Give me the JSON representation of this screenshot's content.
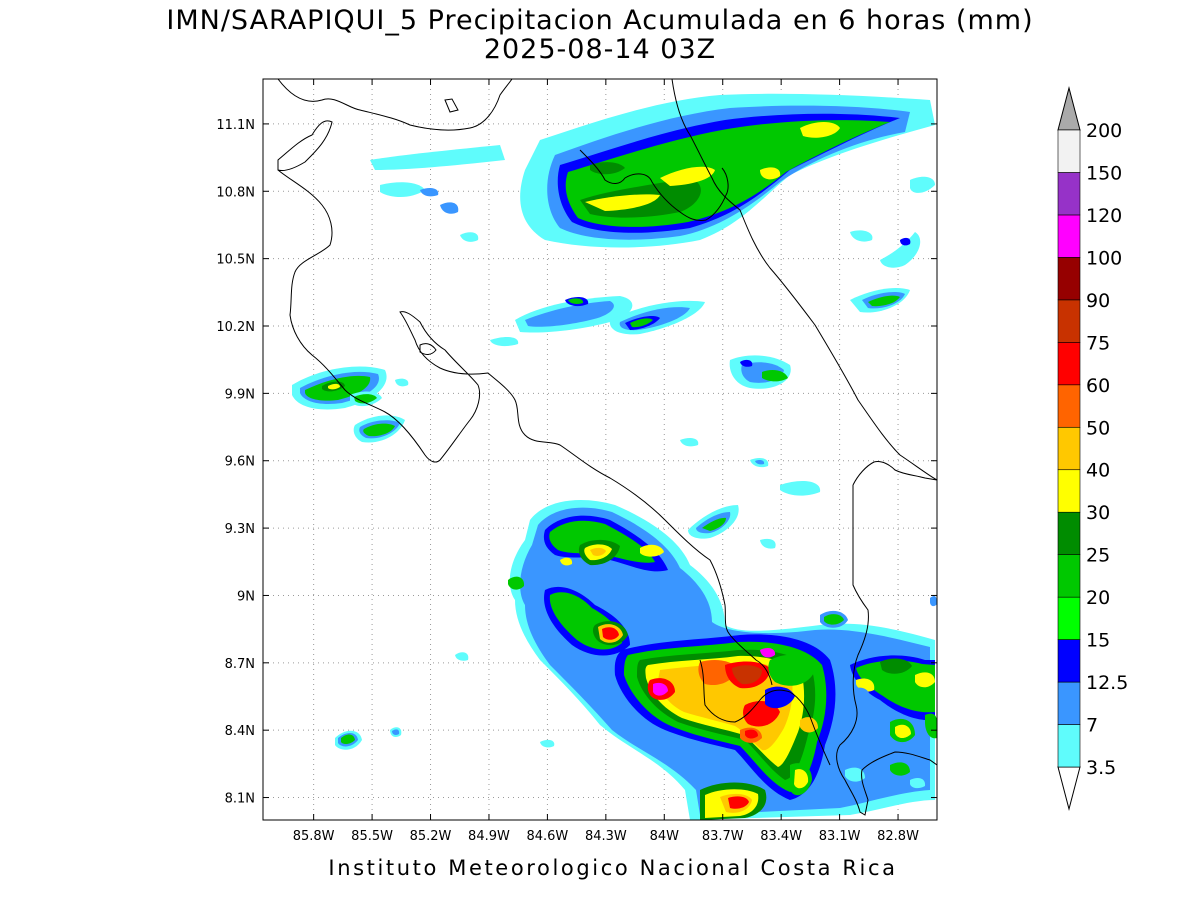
{
  "title": {
    "line1": "IMN/SARAPIQUI_5 Precipitacion Acumulada en 6 horas (mm)",
    "line2": "2025-08-14 03Z"
  },
  "footer": "Instituto Meteorologico Nacional Costa Rica",
  "map": {
    "lon_range": [
      -86.06,
      -82.6
    ],
    "lat_range": [
      8.0,
      11.3
    ],
    "grid": "dotted",
    "lon_ticks": [
      {
        "value": -85.8,
        "label": "85.8W"
      },
      {
        "value": -85.5,
        "label": "85.5W"
      },
      {
        "value": -85.2,
        "label": "85.2W"
      },
      {
        "value": -84.9,
        "label": "84.9W"
      },
      {
        "value": -84.6,
        "label": "84.6W"
      },
      {
        "value": -84.3,
        "label": "84.3W"
      },
      {
        "value": -84.0,
        "label": "84W"
      },
      {
        "value": -83.7,
        "label": "83.7W"
      },
      {
        "value": -83.4,
        "label": "83.4W"
      },
      {
        "value": -83.1,
        "label": "83.1W"
      },
      {
        "value": -82.8,
        "label": "82.8W"
      }
    ],
    "lat_ticks": [
      {
        "value": 11.1,
        "label": "11.1N"
      },
      {
        "value": 10.8,
        "label": "10.8N"
      },
      {
        "value": 10.5,
        "label": "10.5N"
      },
      {
        "value": 10.2,
        "label": "10.2N"
      },
      {
        "value": 9.9,
        "label": "9.9N"
      },
      {
        "value": 9.6,
        "label": "9.6N"
      },
      {
        "value": 9.3,
        "label": "9.3N"
      },
      {
        "value": 9.0,
        "label": "9N"
      },
      {
        "value": 8.7,
        "label": "8.7N"
      },
      {
        "value": 8.4,
        "label": "8.4N"
      },
      {
        "value": 8.1,
        "label": "8.1N"
      }
    ]
  },
  "colorbar": {
    "levels": [
      "3.5",
      "7",
      "12.5",
      "15",
      "20",
      "25",
      "30",
      "40",
      "50",
      "60",
      "75",
      "90",
      "100",
      "120",
      "150",
      "200"
    ],
    "colors": [
      "#5ffcfc",
      "#3a96ff",
      "#0000ff",
      "#00ff00",
      "#00c800",
      "#008c00",
      "#ffff00",
      "#ffc800",
      "#ff6400",
      "#ff0000",
      "#c83200",
      "#960000",
      "#ff00ff",
      "#9632c8",
      "#f2f2f2"
    ],
    "top_arrow_color": "#aaaaaa",
    "bottom_arrow_color": "#ffffff"
  }
}
